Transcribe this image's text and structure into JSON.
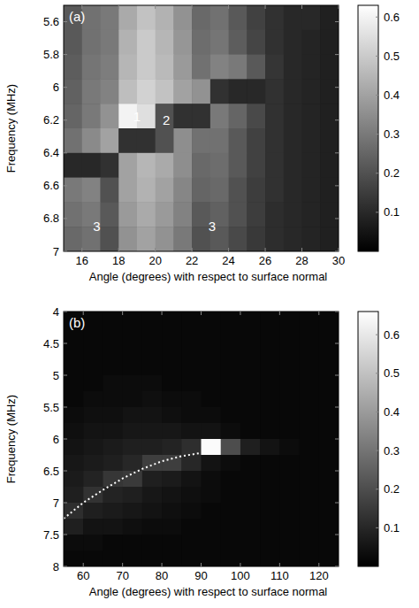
{
  "chart_data": [
    {
      "type": "heatmap",
      "label": "(a)",
      "x_label": "Angle (degrees) with respect to surface normal",
      "y_label": "Frequency (MHz)",
      "xlim": [
        15,
        30
      ],
      "ylim": [
        7,
        5.5
      ],
      "xticks": [
        16,
        18,
        20,
        22,
        24,
        26,
        28,
        30
      ],
      "yticks": [
        5.6,
        5.8,
        6,
        6.2,
        6.4,
        6.6,
        6.8,
        7
      ],
      "x": [
        15.5,
        16.5,
        17.5,
        18.5,
        19.5,
        20.5,
        21.5,
        22.5,
        23.5,
        24.5,
        25.5,
        26.5,
        27.5,
        28.5,
        29.5
      ],
      "y": [
        5.575,
        5.725,
        5.875,
        6.025,
        6.175,
        6.325,
        6.475,
        6.625,
        6.775,
        6.925
      ],
      "z": [
        [
          0.22,
          0.28,
          0.3,
          0.42,
          0.48,
          0.44,
          0.36,
          0.26,
          0.28,
          0.22,
          0.16,
          0.12,
          0.1,
          0.1,
          0.08
        ],
        [
          0.22,
          0.28,
          0.3,
          0.44,
          0.5,
          0.45,
          0.37,
          0.27,
          0.29,
          0.23,
          0.17,
          0.12,
          0.1,
          0.09,
          0.08
        ],
        [
          0.23,
          0.29,
          0.31,
          0.45,
          0.5,
          0.46,
          0.38,
          0.28,
          0.32,
          0.3,
          0.22,
          0.13,
          0.1,
          0.09,
          0.08
        ],
        [
          0.24,
          0.3,
          0.32,
          0.47,
          0.52,
          0.48,
          0.4,
          0.36,
          0.12,
          0.1,
          0.1,
          0.12,
          0.1,
          0.09,
          0.08
        ],
        [
          0.25,
          0.3,
          0.36,
          0.6,
          0.55,
          0.2,
          0.12,
          0.12,
          0.3,
          0.25,
          0.18,
          0.12,
          0.1,
          0.09,
          0.08
        ],
        [
          0.28,
          0.34,
          0.4,
          0.12,
          0.12,
          0.2,
          0.35,
          0.28,
          0.28,
          0.22,
          0.16,
          0.12,
          0.1,
          0.09,
          0.08
        ],
        [
          0.1,
          0.1,
          0.12,
          0.4,
          0.45,
          0.42,
          0.35,
          0.26,
          0.27,
          0.22,
          0.16,
          0.12,
          0.1,
          0.09,
          0.08
        ],
        [
          0.3,
          0.32,
          0.2,
          0.4,
          0.44,
          0.4,
          0.33,
          0.25,
          0.26,
          0.2,
          0.15,
          0.12,
          0.1,
          0.09,
          0.08
        ],
        [
          0.28,
          0.3,
          0.22,
          0.38,
          0.42,
          0.38,
          0.32,
          0.22,
          0.24,
          0.2,
          0.15,
          0.11,
          0.1,
          0.09,
          0.08
        ],
        [
          0.26,
          0.28,
          0.2,
          0.36,
          0.4,
          0.36,
          0.3,
          0.2,
          0.22,
          0.18,
          0.14,
          0.11,
          0.1,
          0.09,
          0.08
        ]
      ],
      "colorbar_lim": [
        0,
        0.63
      ],
      "colorbar_ticks": [
        0.1,
        0.2,
        0.3,
        0.4,
        0.5,
        0.6
      ],
      "annotations": [
        {
          "text": "1",
          "x": 19,
          "y": 6.18
        },
        {
          "text": "2",
          "x": 20.6,
          "y": 6.2
        },
        {
          "text": "3",
          "x": 16.8,
          "y": 6.85
        },
        {
          "text": "3",
          "x": 23.1,
          "y": 6.85
        }
      ]
    },
    {
      "type": "heatmap",
      "label": "(b)",
      "x_label": "Angle (degrees) with respect to surface normal",
      "y_label": "Frequency (MHz)",
      "xlim": [
        55,
        125
      ],
      "ylim": [
        8,
        4
      ],
      "xticks": [
        60,
        70,
        80,
        90,
        100,
        110,
        120
      ],
      "yticks": [
        4,
        4.5,
        5,
        5.5,
        6,
        6.5,
        7,
        7.5,
        8
      ],
      "x": [
        57.5,
        62.5,
        67.5,
        72.5,
        77.5,
        82.5,
        87.5,
        92.5,
        97.5,
        102.5,
        107.5,
        112.5,
        117.5,
        122.5
      ],
      "y": [
        4.125,
        4.375,
        4.625,
        4.875,
        5.125,
        5.375,
        5.625,
        5.875,
        6.125,
        6.375,
        6.625,
        6.875,
        7.125,
        7.375,
        7.625,
        7.875
      ],
      "z": [
        [
          0.02,
          0.02,
          0.02,
          0.02,
          0.02,
          0.02,
          0.02,
          0.02,
          0.02,
          0.02,
          0.02,
          0.02,
          0.02,
          0.02
        ],
        [
          0.02,
          0.02,
          0.02,
          0.02,
          0.02,
          0.02,
          0.02,
          0.02,
          0.02,
          0.02,
          0.02,
          0.02,
          0.02,
          0.02
        ],
        [
          0.02,
          0.02,
          0.02,
          0.02,
          0.02,
          0.02,
          0.02,
          0.02,
          0.02,
          0.02,
          0.02,
          0.02,
          0.02,
          0.02
        ],
        [
          0.02,
          0.02,
          0.02,
          0.02,
          0.02,
          0.02,
          0.02,
          0.02,
          0.02,
          0.02,
          0.02,
          0.02,
          0.02,
          0.02
        ],
        [
          0.02,
          0.02,
          0.03,
          0.03,
          0.03,
          0.02,
          0.02,
          0.02,
          0.02,
          0.02,
          0.02,
          0.02,
          0.02,
          0.02
        ],
        [
          0.02,
          0.03,
          0.03,
          0.03,
          0.04,
          0.03,
          0.03,
          0.02,
          0.02,
          0.02,
          0.02,
          0.02,
          0.02,
          0.02
        ],
        [
          0.03,
          0.04,
          0.04,
          0.05,
          0.05,
          0.04,
          0.03,
          0.03,
          0.02,
          0.02,
          0.02,
          0.02,
          0.02,
          0.02
        ],
        [
          0.04,
          0.05,
          0.05,
          0.06,
          0.06,
          0.06,
          0.05,
          0.05,
          0.03,
          0.02,
          0.02,
          0.02,
          0.02,
          0.02
        ],
        [
          0.05,
          0.06,
          0.07,
          0.08,
          0.08,
          0.09,
          0.12,
          0.65,
          0.2,
          0.08,
          0.05,
          0.03,
          0.02,
          0.02
        ],
        [
          0.06,
          0.07,
          0.08,
          0.1,
          0.16,
          0.16,
          0.1,
          0.05,
          0.03,
          0.02,
          0.02,
          0.02,
          0.02,
          0.02
        ],
        [
          0.07,
          0.09,
          0.14,
          0.15,
          0.08,
          0.07,
          0.05,
          0.03,
          0.02,
          0.02,
          0.02,
          0.02,
          0.02,
          0.02
        ],
        [
          0.08,
          0.13,
          0.09,
          0.08,
          0.06,
          0.05,
          0.04,
          0.03,
          0.02,
          0.02,
          0.02,
          0.02,
          0.02,
          0.02
        ],
        [
          0.12,
          0.08,
          0.07,
          0.06,
          0.05,
          0.04,
          0.03,
          0.02,
          0.02,
          0.02,
          0.02,
          0.02,
          0.02,
          0.02
        ],
        [
          0.08,
          0.05,
          0.05,
          0.04,
          0.03,
          0.03,
          0.02,
          0.02,
          0.02,
          0.02,
          0.02,
          0.02,
          0.02,
          0.02
        ],
        [
          0.03,
          0.03,
          0.02,
          0.02,
          0.02,
          0.02,
          0.02,
          0.02,
          0.02,
          0.02,
          0.02,
          0.02,
          0.02,
          0.02
        ],
        [
          0.02,
          0.02,
          0.02,
          0.02,
          0.02,
          0.02,
          0.02,
          0.02,
          0.02,
          0.02,
          0.02,
          0.02,
          0.02,
          0.02
        ]
      ],
      "colorbar_lim": [
        0,
        0.66
      ],
      "colorbar_ticks": [
        0.1,
        0.2,
        0.3,
        0.4,
        0.5,
        0.6
      ],
      "series": [
        {
          "type": "line",
          "color": "#ffffff",
          "line_style": "dotted",
          "x": [
            55,
            60,
            65,
            70,
            75,
            80,
            85,
            90
          ],
          "values": [
            7.25,
            7.0,
            6.8,
            6.62,
            6.47,
            6.35,
            6.27,
            6.22
          ]
        }
      ]
    }
  ]
}
